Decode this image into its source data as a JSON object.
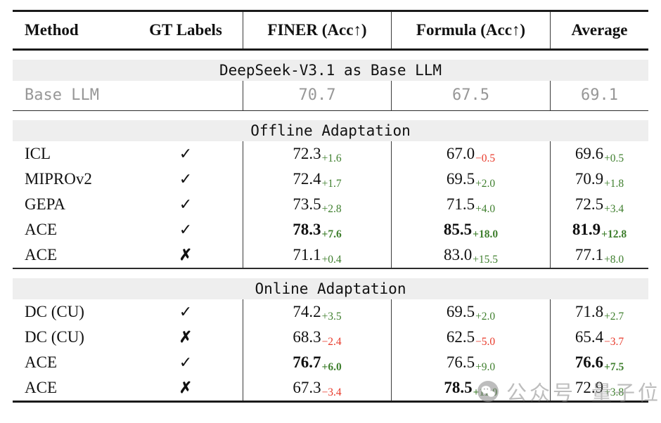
{
  "header": {
    "columns": [
      "Method",
      "GT Labels",
      "FINER (Acc↑)",
      "Formula (Acc↑)",
      "Average"
    ]
  },
  "sections": [
    {
      "banner": "DeepSeek-V3.1 as Base LLM",
      "type": "base",
      "rows": [
        {
          "method": "Base LLM",
          "gt": "",
          "muted": true,
          "cells": [
            {
              "value": "70.7"
            },
            {
              "value": "67.5"
            },
            {
              "value": "69.1"
            }
          ]
        }
      ]
    },
    {
      "banner": "Offline Adaptation",
      "type": "offline",
      "rows": [
        {
          "method": "ICL",
          "gt": "✓",
          "cells": [
            {
              "value": "72.3",
              "delta": "+1.6",
              "dir": "up"
            },
            {
              "value": "67.0",
              "delta": "−0.5",
              "dir": "down"
            },
            {
              "value": "69.6",
              "delta": "+0.5",
              "dir": "up"
            }
          ]
        },
        {
          "method": "MIPROv2",
          "gt": "✓",
          "cells": [
            {
              "value": "72.4",
              "delta": "+1.7",
              "dir": "up"
            },
            {
              "value": "69.5",
              "delta": "+2.0",
              "dir": "up"
            },
            {
              "value": "70.9",
              "delta": "+1.8",
              "dir": "up"
            }
          ]
        },
        {
          "method": "GEPA",
          "gt": "✓",
          "cells": [
            {
              "value": "73.5",
              "delta": "+2.8",
              "dir": "up"
            },
            {
              "value": "71.5",
              "delta": "+4.0",
              "dir": "up"
            },
            {
              "value": "72.5",
              "delta": "+3.4",
              "dir": "up"
            }
          ]
        },
        {
          "method": "ACE",
          "gt": "✓",
          "cells": [
            {
              "value": "78.3",
              "delta": "+7.6",
              "dir": "up",
              "bold": true
            },
            {
              "value": "85.5",
              "delta": "+18.0",
              "dir": "up",
              "bold": true
            },
            {
              "value": "81.9",
              "delta": "+12.8",
              "dir": "up",
              "bold": true
            }
          ]
        },
        {
          "method": "ACE",
          "gt": "✗",
          "cells": [
            {
              "value": "71.1",
              "delta": "+0.4",
              "dir": "up"
            },
            {
              "value": "83.0",
              "delta": "+15.5",
              "dir": "up"
            },
            {
              "value": "77.1",
              "delta": "+8.0",
              "dir": "up"
            }
          ]
        }
      ]
    },
    {
      "banner": "Online Adaptation",
      "type": "online",
      "rows": [
        {
          "method": "DC (CU)",
          "gt": "✓",
          "cells": [
            {
              "value": "74.2",
              "delta": "+3.5",
              "dir": "up"
            },
            {
              "value": "69.5",
              "delta": "+2.0",
              "dir": "up"
            },
            {
              "value": "71.8",
              "delta": "+2.7",
              "dir": "up"
            }
          ]
        },
        {
          "method": "DC (CU)",
          "gt": "✗",
          "cells": [
            {
              "value": "68.3",
              "delta": "−2.4",
              "dir": "down"
            },
            {
              "value": "62.5",
              "delta": "−5.0",
              "dir": "down"
            },
            {
              "value": "65.4",
              "delta": "−3.7",
              "dir": "down"
            }
          ]
        },
        {
          "method": "ACE",
          "gt": "✓",
          "cells": [
            {
              "value": "76.7",
              "delta": "+6.0",
              "dir": "up",
              "bold": true
            },
            {
              "value": "76.5",
              "delta": "+9.0",
              "dir": "up"
            },
            {
              "value": "76.6",
              "delta": "+7.5",
              "dir": "up",
              "bold": true
            }
          ]
        },
        {
          "method": "ACE",
          "gt": "✗",
          "cells": [
            {
              "value": "67.3",
              "delta": "−3.4",
              "dir": "down"
            },
            {
              "value": "78.5",
              "delta": "+11.0",
              "dir": "up",
              "bold": true
            },
            {
              "value": "72.9",
              "delta": "+3.8",
              "dir": "up"
            }
          ]
        }
      ]
    }
  ],
  "watermark": {
    "text_left": "公众号",
    "text_right": "量子位",
    "icon": "wechat-logo-icon"
  },
  "colors": {
    "up": "#3f7f2e",
    "down": "#e8392a",
    "muted": "#979797",
    "banner_bg": "#eeeeee",
    "rule": "#1a1a1a"
  }
}
